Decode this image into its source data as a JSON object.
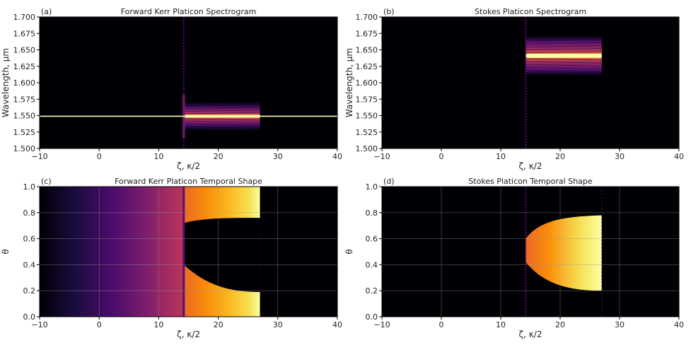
{
  "chart_data": [
    {
      "panel_label": "(a)",
      "type": "heatmap",
      "title": "Forward Kerr Platicon Spectrogram",
      "xlabel": "ζ,  κ/2",
      "ylabel": "Wavelength, μm",
      "xlim": [
        -10,
        40
      ],
      "ylim": [
        1.5,
        1.7
      ],
      "xticks": [
        "−10",
        "0",
        "10",
        "20",
        "30",
        "40"
      ],
      "yticks": [
        "1.500",
        "1.525",
        "1.550",
        "1.575",
        "1.600",
        "1.625",
        "1.650",
        "1.675",
        "1.700"
      ],
      "grid": false,
      "features": {
        "pump_line_wavelength": 1.549,
        "transition_zeta": 14.2,
        "end_zeta": 27,
        "band_center": 1.549,
        "band_halfwidth": 0.022
      }
    },
    {
      "panel_label": "(b)",
      "type": "heatmap",
      "title": "Stokes Platicon Spectrogram",
      "xlabel": "ζ,  κ/2",
      "ylabel": "Wavelength, μm",
      "xlim": [
        -10,
        40
      ],
      "ylim": [
        1.5,
        1.7
      ],
      "xticks": [
        "−10",
        "0",
        "10",
        "20",
        "30",
        "40"
      ],
      "yticks": [
        "1.500",
        "1.525",
        "1.550",
        "1.575",
        "1.600",
        "1.625",
        "1.650",
        "1.675",
        "1.700"
      ],
      "grid": false,
      "features": {
        "transition_zeta": 14.2,
        "end_zeta": 27,
        "band_center": 1.641,
        "band_halfwidth": 0.031
      }
    },
    {
      "panel_label": "(c)",
      "type": "heatmap",
      "title": "Forward Kerr Platicon Temporal Shape",
      "xlabel": "ζ,  κ/2",
      "ylabel": "θ",
      "xlim": [
        -10,
        40
      ],
      "ylim": [
        0,
        1
      ],
      "xticks": [
        "−10",
        "0",
        "10",
        "20",
        "30",
        "40"
      ],
      "yticks": [
        "0.0",
        "0.2",
        "0.4",
        "0.6",
        "0.8",
        "1.0"
      ],
      "grid": true,
      "features": {
        "transition_zeta": 14.2,
        "end_zeta": 27
      }
    },
    {
      "panel_label": "(d)",
      "type": "heatmap",
      "title": "Stokes Platicon Temporal Shape",
      "xlabel": "ζ,  κ/2",
      "ylabel": "θ",
      "xlim": [
        -10,
        40
      ],
      "ylim": [
        0,
        1
      ],
      "xticks": [
        "−10",
        "0",
        "10",
        "20",
        "30",
        "40"
      ],
      "yticks": [
        "0.0",
        "0.2",
        "0.4",
        "0.6",
        "0.8",
        "1.0"
      ],
      "grid": true,
      "features": {
        "transition_zeta": 14.2,
        "end_zeta": 27
      }
    }
  ],
  "colors": {
    "colormap": "inferno",
    "background": "#000004",
    "grid": "#9a9a9a"
  }
}
